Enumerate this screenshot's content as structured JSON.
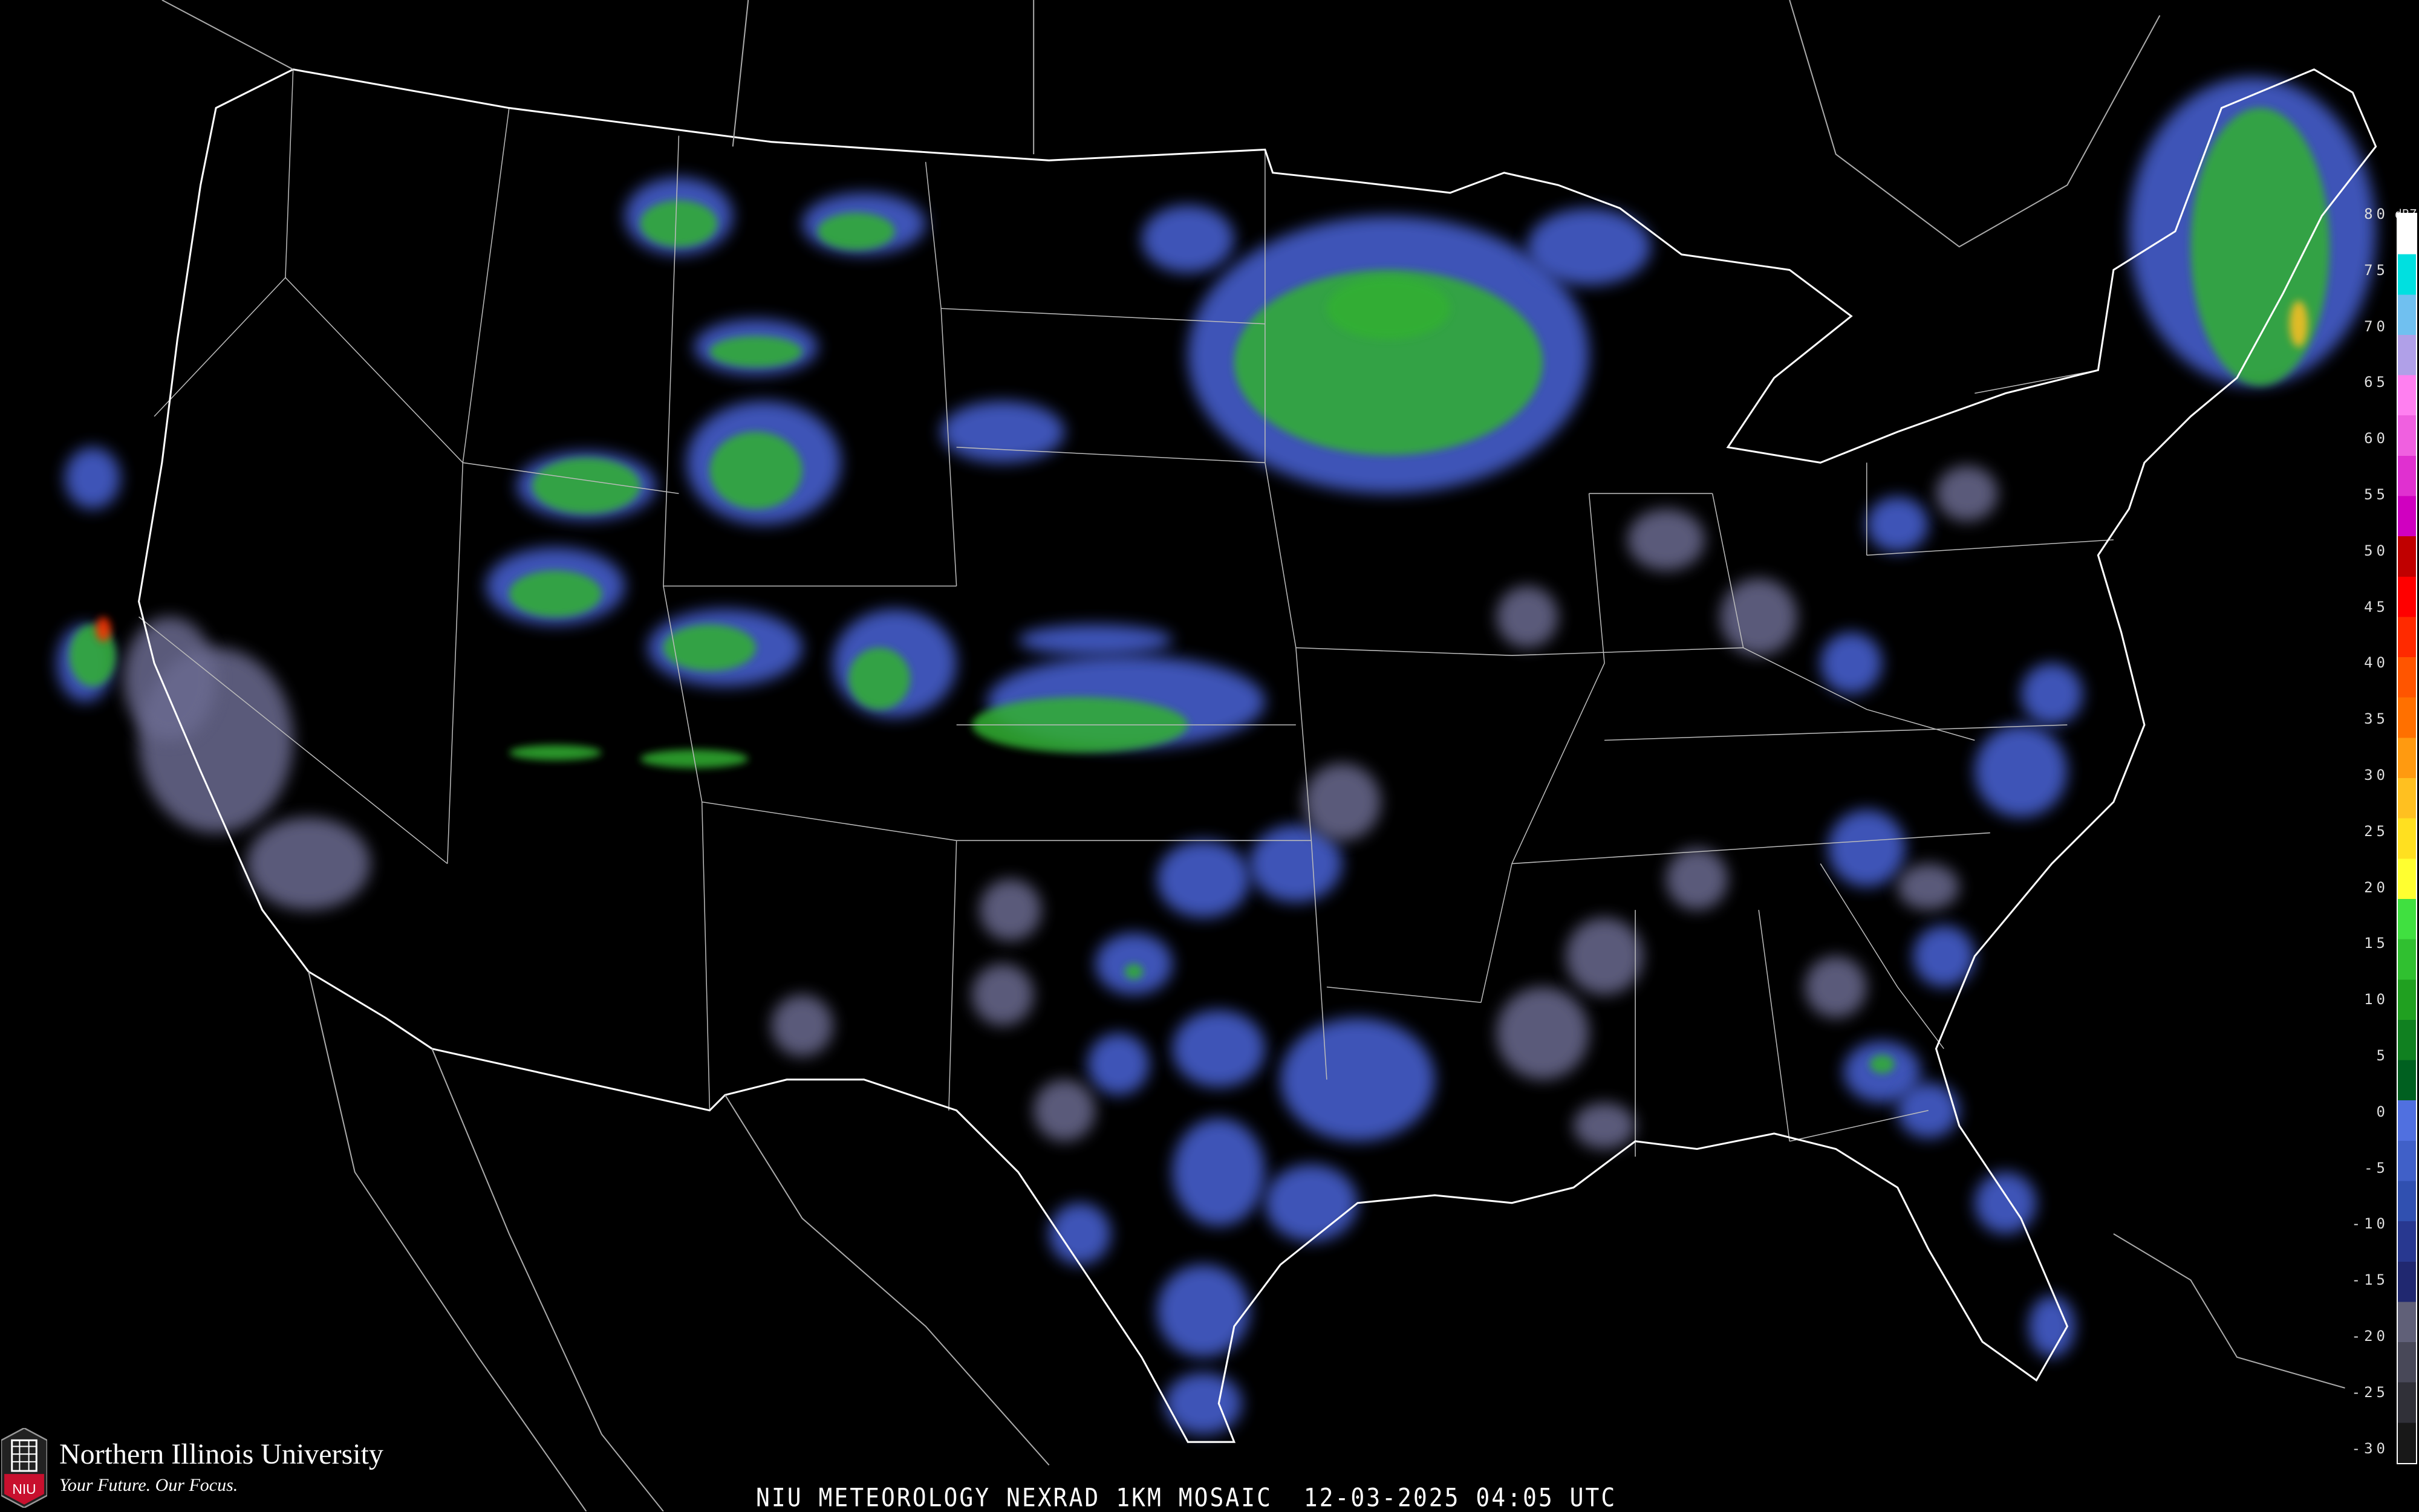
{
  "caption": "NIU METEOROLOGY NEXRAD 1KM MOSAIC  12-03-2025 04:05 UTC",
  "branding": {
    "university": "Northern Illinois University",
    "tagline": "Your Future. Our Focus.",
    "shield_text": "NIU",
    "shield_color": "#c8102e"
  },
  "legend": {
    "unit": "dBZ",
    "ticks": [
      "80",
      "75",
      "70",
      "65",
      "60",
      "55",
      "50",
      "45",
      "40",
      "35",
      "30",
      "25",
      "20",
      "15",
      "10",
      "5",
      "0",
      "-5",
      "-10",
      "-15",
      "-20",
      "-25",
      "-30"
    ],
    "colors": [
      "#ffffff",
      "#00e0e0",
      "#70c0f0",
      "#b0a0e8",
      "#ff80f0",
      "#f060e0",
      "#e030d0",
      "#d000c0",
      "#c00000",
      "#ff0000",
      "#ff2a00",
      "#ff5500",
      "#ff7000",
      "#ff9a10",
      "#ffc020",
      "#ffe020",
      "#ffff30",
      "#40e040",
      "#30c030",
      "#20a020",
      "#108020",
      "#006020",
      "#5070e0",
      "#4060c8",
      "#3050b0",
      "#283890",
      "#202870",
      "#606078",
      "#484858",
      "#303038",
      "#181818"
    ]
  },
  "map": {
    "background": "#000000",
    "border_color": "#ffffff",
    "county_color": "#555555",
    "road_color": "#8a4a2a"
  }
}
